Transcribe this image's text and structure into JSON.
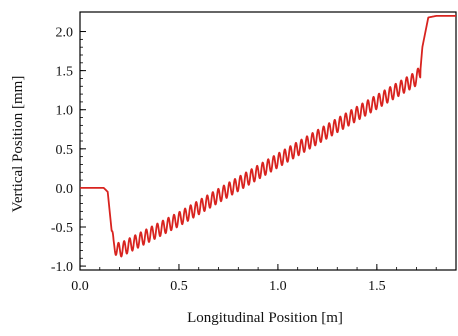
{
  "chart_data": {
    "type": "line",
    "title": "",
    "xlabel": "Longitudinal Position [m]",
    "ylabel": "Vertical Position [mm]",
    "xlim": [
      0.0,
      1.9
    ],
    "ylim": [
      -1.05,
      2.25
    ],
    "xticks": [
      0.0,
      0.5,
      1.0,
      1.5
    ],
    "xtick_labels": [
      "0.0",
      "0.5",
      "1.0",
      "1.5"
    ],
    "yticks": [
      -1.0,
      -0.5,
      0.0,
      0.5,
      1.0,
      1.5,
      2.0
    ],
    "ytick_labels": [
      "-1.0",
      "-0.5",
      "0.0",
      "0.5",
      "1.0",
      "1.5",
      "2.0"
    ],
    "grid": false,
    "legend": false,
    "series_color": "#d8231f",
    "series": [
      {
        "x": [
          0.0,
          0.12,
          0.14,
          0.16,
          0.17,
          0.2,
          0.5,
          0.8,
          1.1,
          1.4,
          1.7,
          1.72,
          1.73,
          1.76,
          1.8,
          1.9
        ],
        "y": [
          0.0,
          0.0,
          -0.05,
          -0.55,
          -0.75,
          -0.8,
          -0.4,
          0.05,
          0.5,
          0.95,
          1.4,
          1.5,
          1.8,
          2.18,
          2.2,
          2.2
        ]
      }
    ],
    "oscillation": {
      "x_start": 0.16,
      "x_end": 1.72,
      "period_m": 0.028,
      "amplitude_mm": 0.09
    }
  }
}
